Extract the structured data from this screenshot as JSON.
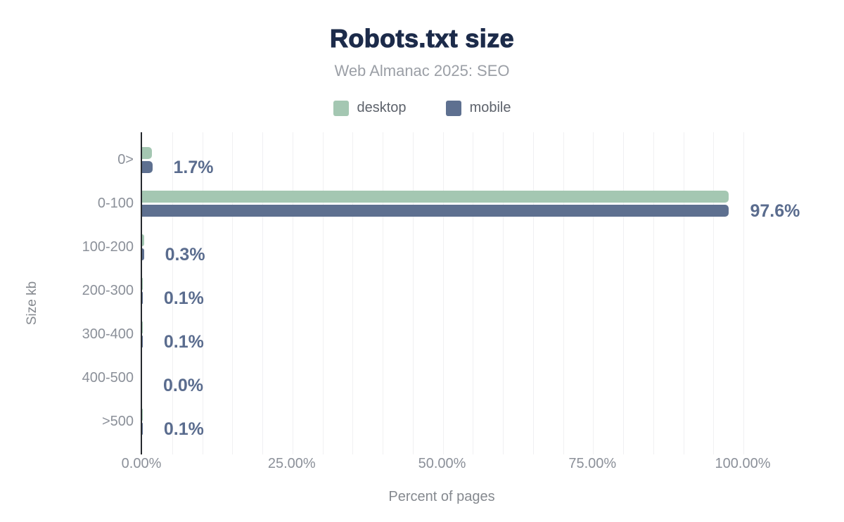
{
  "chart_data": {
    "type": "bar",
    "orientation": "horizontal",
    "title": "Robots.txt size",
    "subtitle": "Web Almanac 2025: SEO",
    "xlabel": "Percent of pages",
    "ylabel": "Size kb",
    "categories": [
      "0>",
      "0-100",
      "100-200",
      "200-300",
      "300-400",
      "400-500",
      ">500"
    ],
    "series": [
      {
        "name": "desktop",
        "color": "#a4c7b2",
        "values": [
          1.6,
          97.5,
          0.3,
          0.1,
          0.1,
          0.0,
          0.1
        ]
      },
      {
        "name": "mobile",
        "color": "#5e7090",
        "values": [
          1.7,
          97.6,
          0.3,
          0.1,
          0.1,
          0.0,
          0.1
        ]
      }
    ],
    "value_labels": [
      "1.7%",
      "97.6%",
      "0.3%",
      "0.1%",
      "0.1%",
      "0.0%",
      "0.1%"
    ],
    "x_ticks": [
      {
        "value": 0,
        "label": "0.00%"
      },
      {
        "value": 25,
        "label": "25.00%"
      },
      {
        "value": 50,
        "label": "50.00%"
      },
      {
        "value": 75,
        "label": "75.00%"
      },
      {
        "value": 100,
        "label": "100.00%"
      }
    ],
    "xlim": [
      0,
      110
    ],
    "grid": {
      "show": true,
      "minor_step_pct": 5,
      "max_pct": 100
    },
    "legend_position": "top",
    "colors": {
      "title": "#1c2b4a",
      "value_label": "#5a6c8e",
      "axis_line": "#26292e",
      "gridline": "#f0f0f2"
    }
  }
}
